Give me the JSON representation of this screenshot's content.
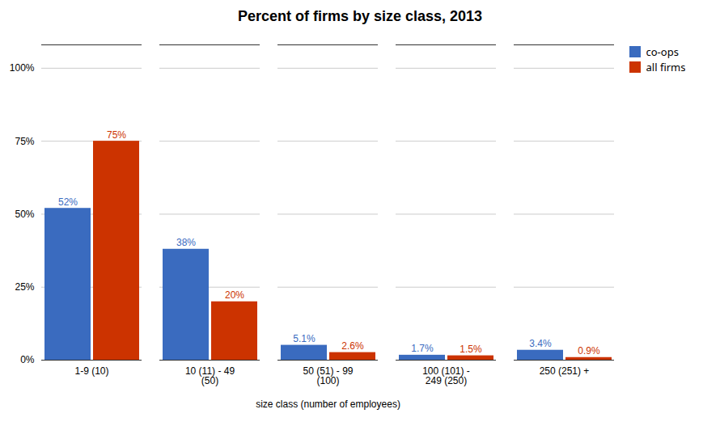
{
  "chart_data": {
    "type": "bar",
    "title": "Percent of firms by size class, 2013",
    "xlabel": "size class (number of employees)",
    "categories": [
      "1-9 (10)",
      "10 (11) - 49\n(50)",
      "50 (51) - 99\n(100)",
      "100 (101) -\n249 (250)",
      "250 (251) +"
    ],
    "series": [
      {
        "name": "co-ops",
        "color": "#3a6bbf",
        "values": [
          52,
          38,
          5.1,
          1.7,
          3.4
        ],
        "value_labels": [
          "52%",
          "38%",
          "5.1%",
          "1.7%",
          "3.4%"
        ]
      },
      {
        "name": "all firms",
        "color": "#cc3300",
        "values": [
          75,
          20,
          2.6,
          1.5,
          0.9
        ],
        "value_labels": [
          "75%",
          "20%",
          "2.6%",
          "1.5%",
          "0.9%"
        ]
      }
    ],
    "ylim": [
      0,
      108
    ],
    "yticks": [
      {
        "value": 0,
        "label": "0%"
      },
      {
        "value": 25,
        "label": "25%"
      },
      {
        "value": 50,
        "label": "50%"
      },
      {
        "value": 75,
        "label": "75%"
      },
      {
        "value": 100,
        "label": "100%"
      }
    ],
    "grid": true,
    "data_labels": true,
    "legend": "right"
  }
}
